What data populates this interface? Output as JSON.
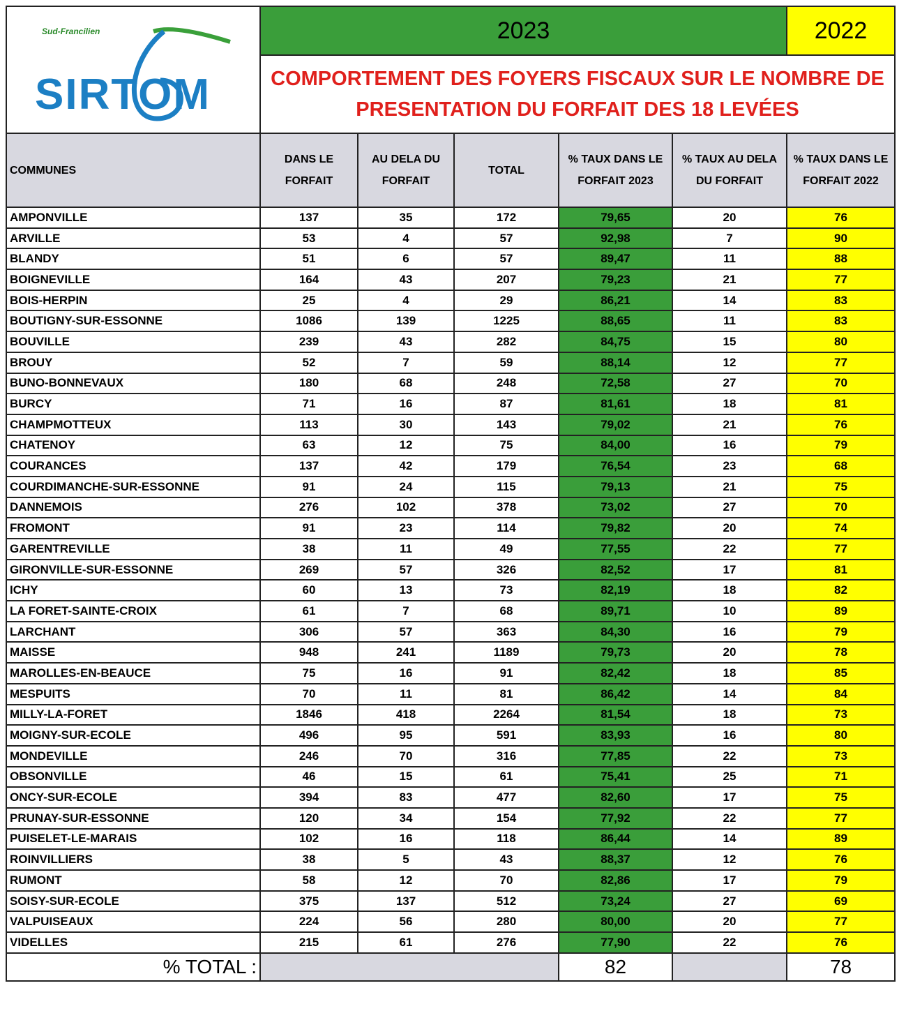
{
  "logo": {
    "tagline": "Sud-Francilien",
    "name": "SIRTOM"
  },
  "header": {
    "year_current": "2023",
    "year_previous": "2022",
    "title_line1": "COMPORTEMENT DES FOYERS FISCAUX SUR LE NOMBRE DE",
    "title_line2": "PRESENTATION DU FORFAIT DES 18 LEVÉES"
  },
  "table": {
    "columns": [
      "COMMUNES",
      "DANS LE FORFAIT",
      "AU DELA  DU FORFAIT",
      "TOTAL",
      "% TAUX DANS LE FORFAIT 2023",
      "% TAUX AU DELA DU FORFAIT",
      "% TAUX DANS LE FORFAIT 2022"
    ],
    "rows": [
      [
        "AMPONVILLE",
        "137",
        "35",
        "172",
        "79,65",
        "20",
        "76"
      ],
      [
        "ARVILLE",
        "53",
        "4",
        "57",
        "92,98",
        "7",
        "90"
      ],
      [
        "BLANDY",
        "51",
        "6",
        "57",
        "89,47",
        "11",
        "88"
      ],
      [
        "BOIGNEVILLE",
        "164",
        "43",
        "207",
        "79,23",
        "21",
        "77"
      ],
      [
        "BOIS-HERPIN",
        "25",
        "4",
        "29",
        "86,21",
        "14",
        "83"
      ],
      [
        "BOUTIGNY-SUR-ESSONNE",
        "1086",
        "139",
        "1225",
        "88,65",
        "11",
        "83"
      ],
      [
        "BOUVILLE",
        "239",
        "43",
        "282",
        "84,75",
        "15",
        "80"
      ],
      [
        "BROUY",
        "52",
        "7",
        "59",
        "88,14",
        "12",
        "77"
      ],
      [
        "BUNO-BONNEVAUX",
        "180",
        "68",
        "248",
        "72,58",
        "27",
        "70"
      ],
      [
        "BURCY",
        "71",
        "16",
        "87",
        "81,61",
        "18",
        "81"
      ],
      [
        "CHAMPMOTTEUX",
        "113",
        "30",
        "143",
        "79,02",
        "21",
        "76"
      ],
      [
        "CHATENOY",
        "63",
        "12",
        "75",
        "84,00",
        "16",
        "79"
      ],
      [
        "COURANCES",
        "137",
        "42",
        "179",
        "76,54",
        "23",
        "68"
      ],
      [
        "COURDIMANCHE-SUR-ESSONNE",
        "91",
        "24",
        "115",
        "79,13",
        "21",
        "75"
      ],
      [
        "DANNEMOIS",
        "276",
        "102",
        "378",
        "73,02",
        "27",
        "70"
      ],
      [
        "FROMONT",
        "91",
        "23",
        "114",
        "79,82",
        "20",
        "74"
      ],
      [
        "GARENTREVILLE",
        "38",
        "11",
        "49",
        "77,55",
        "22",
        "77"
      ],
      [
        "GIRONVILLE-SUR-ESSONNE",
        "269",
        "57",
        "326",
        "82,52",
        "17",
        "81"
      ],
      [
        "ICHY",
        "60",
        "13",
        "73",
        "82,19",
        "18",
        "82"
      ],
      [
        "LA FORET-SAINTE-CROIX",
        "61",
        "7",
        "68",
        "89,71",
        "10",
        "89"
      ],
      [
        "LARCHANT",
        "306",
        "57",
        "363",
        "84,30",
        "16",
        "79"
      ],
      [
        "MAISSE",
        "948",
        "241",
        "1189",
        "79,73",
        "20",
        "78"
      ],
      [
        "MAROLLES-EN-BEAUCE",
        "75",
        "16",
        "91",
        "82,42",
        "18",
        "85"
      ],
      [
        "MESPUITS",
        "70",
        "11",
        "81",
        "86,42",
        "14",
        "84"
      ],
      [
        "MILLY-LA-FORET",
        "1846",
        "418",
        "2264",
        "81,54",
        "18",
        "73"
      ],
      [
        "MOIGNY-SUR-ECOLE",
        "496",
        "95",
        "591",
        "83,93",
        "16",
        "80"
      ],
      [
        "MONDEVILLE",
        "246",
        "70",
        "316",
        "77,85",
        "22",
        "73"
      ],
      [
        "OBSONVILLE",
        "46",
        "15",
        "61",
        "75,41",
        "25",
        "71"
      ],
      [
        "ONCY-SUR-ECOLE",
        "394",
        "83",
        "477",
        "82,60",
        "17",
        "75"
      ],
      [
        "PRUNAY-SUR-ESSONNE",
        "120",
        "34",
        "154",
        "77,92",
        "22",
        "77"
      ],
      [
        "PUISELET-LE-MARAIS",
        "102",
        "16",
        "118",
        "86,44",
        "14",
        "89"
      ],
      [
        "ROINVILLIERS",
        "38",
        "5",
        "43",
        "88,37",
        "12",
        "76"
      ],
      [
        "RUMONT",
        "58",
        "12",
        "70",
        "82,86",
        "17",
        "79"
      ],
      [
        "SOISY-SUR-ECOLE",
        "375",
        "137",
        "512",
        "73,24",
        "27",
        "69"
      ],
      [
        "VALPUISEAUX",
        "224",
        "56",
        "280",
        "80,00",
        "20",
        "77"
      ],
      [
        "VIDELLES",
        "215",
        "61",
        "276",
        "77,90",
        "22",
        "76"
      ]
    ],
    "footer": {
      "label": "% TOTAL :",
      "total_2023": "82",
      "total_2022": "78"
    }
  }
}
